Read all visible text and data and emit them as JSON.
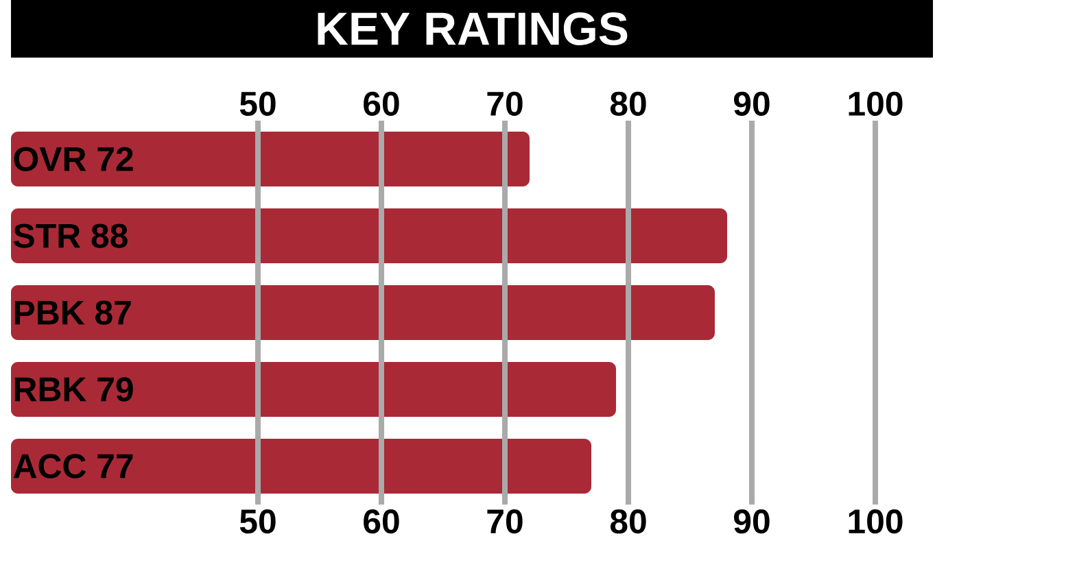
{
  "chart_data": {
    "type": "bar",
    "orientation": "horizontal",
    "title": "KEY RATINGS",
    "categories": [
      "OVR 72",
      "STR 88",
      "PBK 87",
      "RBK 79",
      "ACC 77"
    ],
    "values": [
      72,
      88,
      87,
      79,
      77
    ],
    "color": "#a92a36",
    "xlim": [
      30,
      100
    ],
    "xticks": [
      50,
      60,
      70,
      80,
      90,
      100
    ],
    "x2lim": [
      30,
      100
    ],
    "x2ticks": [
      50,
      60,
      70,
      80,
      90,
      100
    ],
    "grid": "x"
  }
}
